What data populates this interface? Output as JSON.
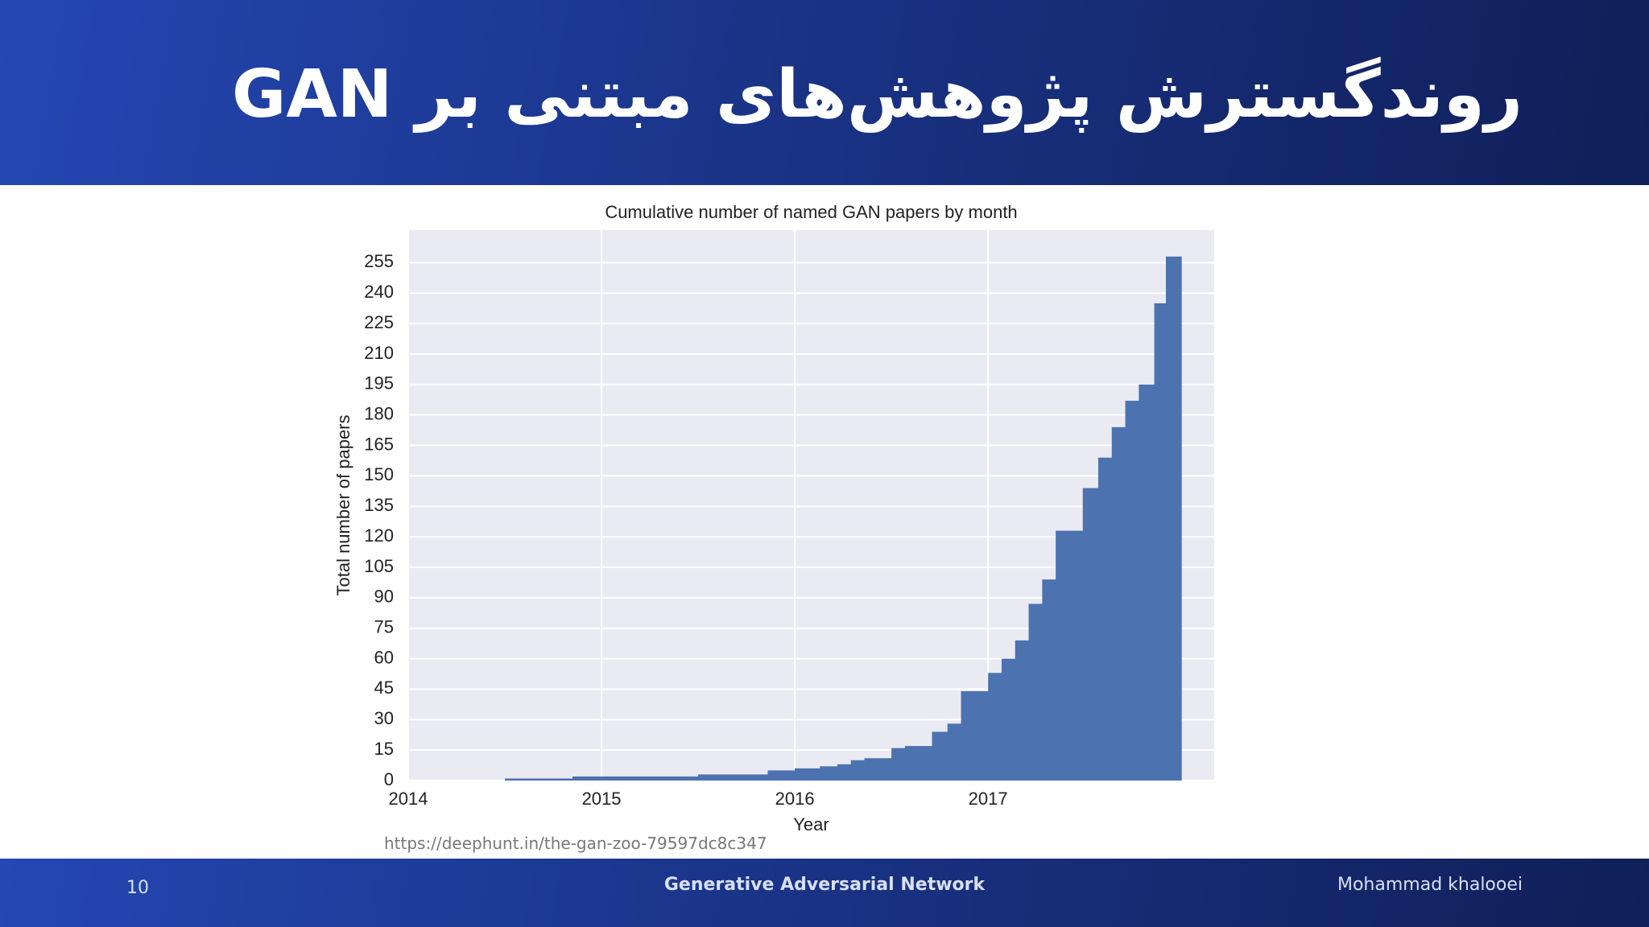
{
  "header": {
    "title": "روندگسترش پژوهش‌های مبتنی بر GAN"
  },
  "chart_data": {
    "type": "histogram",
    "title": "Cumulative number of named GAN papers by month",
    "x_label": "Year",
    "y_label": "Total number of papers",
    "bins": [
      2014.5,
      2014.85,
      2015.5,
      2015.86,
      2016.0,
      2016.13,
      2016.22,
      2016.29,
      2016.36,
      2016.5,
      2016.57,
      2016.71,
      2016.79,
      2016.86,
      2017.0,
      2017.07,
      2017.14,
      2017.21,
      2017.28,
      2017.35,
      2017.49,
      2017.57,
      2017.64,
      2017.71,
      2017.78,
      2017.86,
      2017.92,
      2018.0
    ],
    "values": [
      1,
      2,
      3,
      5,
      6,
      7,
      8,
      10,
      11,
      16,
      17,
      24,
      28,
      44,
      53,
      60,
      69,
      87,
      99,
      123,
      144,
      159,
      174,
      187,
      195,
      235,
      258
    ],
    "color": "#4c72b0",
    "xlim": [
      2014,
      2018.17
    ],
    "xticks": [
      2014,
      2015,
      2016,
      2017
    ],
    "ylim": [
      0,
      271
    ],
    "yticks": [
      0,
      15,
      30,
      45,
      60,
      75,
      90,
      105,
      120,
      135,
      150,
      165,
      180,
      195,
      210,
      225,
      240,
      255
    ],
    "grid": true
  },
  "source": "https://deephunt.in/the-gan-zoo-79597dc8c347",
  "footer": {
    "page": "10",
    "center": "Generative Adversarial Network",
    "author": "Mohammad khalooei"
  }
}
